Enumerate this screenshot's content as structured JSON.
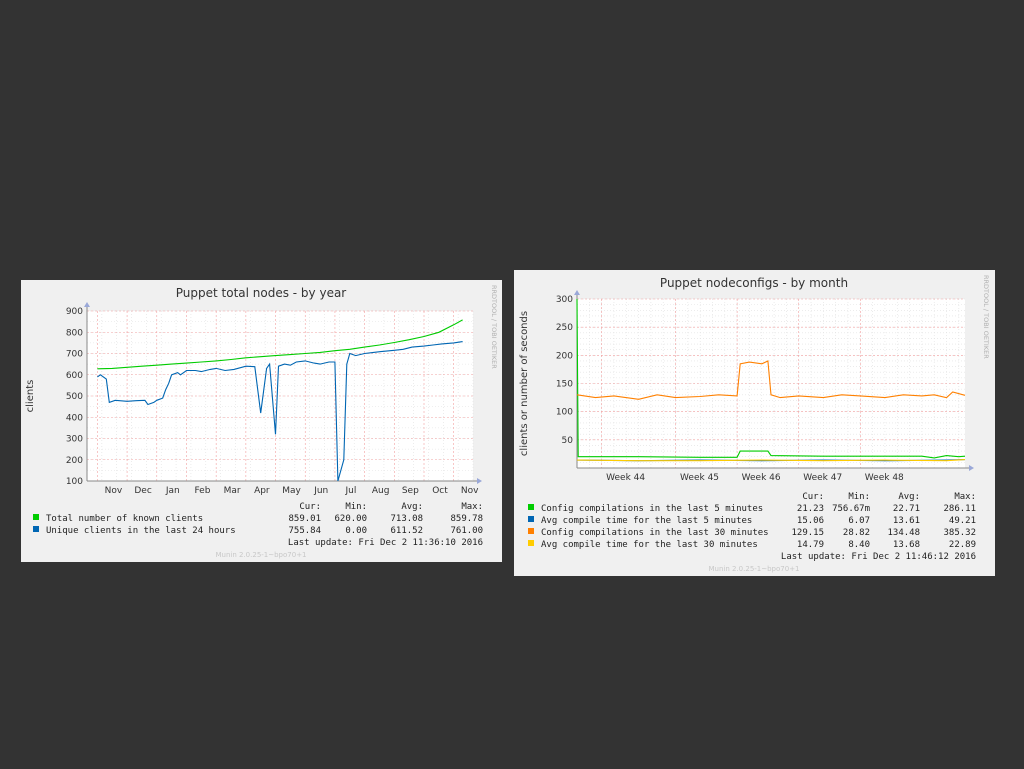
{
  "colors": {
    "background": "#333333",
    "panel": "#f0f0f0",
    "plot_bg": "#ffffff",
    "grid_major": "#f2a0a0",
    "grid_minor": "#e0e0e0",
    "green": "#00cc00",
    "blue": "#0066b3",
    "orange": "#ff8000",
    "yellow": "#ffcc00"
  },
  "side_label": "RRDTOOL / TOBI OETIKER",
  "chart_data": [
    {
      "type": "line",
      "title": "Puppet total nodes - by year",
      "ylabel": "clients",
      "xlabel": "",
      "ylim": [
        100,
        900
      ],
      "yticks": [
        100,
        200,
        300,
        400,
        500,
        600,
        700,
        800,
        900
      ],
      "xticks": [
        "Nov",
        "Dec",
        "Jan",
        "Feb",
        "Mar",
        "Apr",
        "May",
        "Jun",
        "Jul",
        "Aug",
        "Sep",
        "Oct",
        "Nov"
      ],
      "grid": true,
      "legend_position": "bottom",
      "legend_header": [
        "Cur:",
        "Min:",
        "Avg:",
        "Max:"
      ],
      "series": [
        {
          "name": "Total number of known clients",
          "color": "#00cc00",
          "cur": "859.01",
          "min": "620.00",
          "avg": "713.08",
          "max": "859.78",
          "x": [
            0,
            0.5,
            1,
            1.5,
            2,
            2.5,
            3,
            3.5,
            4,
            4.5,
            5,
            5.5,
            6,
            6.5,
            7,
            7.5,
            8,
            8.5,
            9,
            9.5,
            10,
            10.5,
            11,
            11.5,
            12,
            12.3
          ],
          "values": [
            628,
            630,
            635,
            640,
            645,
            650,
            655,
            660,
            665,
            672,
            680,
            685,
            690,
            695,
            700,
            705,
            713,
            720,
            730,
            740,
            752,
            765,
            780,
            800,
            835,
            858
          ]
        },
        {
          "name": "Unique clients in the last 24 hours",
          "color": "#0066b3",
          "cur": "755.84",
          "min": "0.00",
          "avg": "611.52",
          "max": "761.00",
          "x": [
            0,
            0.1,
            0.3,
            0.4,
            0.6,
            1,
            1.3,
            1.6,
            1.7,
            1.9,
            2,
            2.2,
            2.3,
            2.4,
            2.5,
            2.7,
            2.8,
            3,
            3.3,
            3.5,
            3.8,
            4,
            4.3,
            4.6,
            5,
            5.3,
            5.5,
            5.7,
            5.8,
            6,
            6.1,
            6.3,
            6.5,
            6.7,
            7,
            7.3,
            7.5,
            7.8,
            8,
            8.1,
            8.3,
            8.4,
            8.5,
            8.7,
            9,
            9.3,
            9.6,
            10,
            10.3,
            10.6,
            11,
            11.3,
            11.6,
            12,
            12.3
          ],
          "values": [
            590,
            600,
            580,
            470,
            480,
            475,
            478,
            480,
            460,
            470,
            480,
            490,
            530,
            560,
            600,
            610,
            600,
            620,
            620,
            615,
            625,
            630,
            620,
            625,
            640,
            638,
            420,
            630,
            650,
            320,
            640,
            650,
            645,
            660,
            665,
            655,
            650,
            660,
            660,
            0,
            200,
            650,
            700,
            690,
            700,
            705,
            710,
            715,
            720,
            730,
            735,
            740,
            745,
            750,
            756
          ]
        }
      ],
      "last_update": "Last update:  Fri Dec  2 11:36:10 2016",
      "footer": "Munin 2.0.25-1~bpo70+1"
    },
    {
      "type": "line",
      "title": "Puppet nodeconfigs - by month",
      "ylabel": "clients or number of seconds",
      "xlabel": "",
      "ylim": [
        0,
        300
      ],
      "yticks": [
        50,
        100,
        150,
        200,
        250,
        300
      ],
      "xticks": [
        "Week 44",
        "Week 45",
        "Week 46",
        "Week 47",
        "Week 48"
      ],
      "grid": true,
      "legend_position": "bottom",
      "legend_header": [
        "Cur:",
        "Min:",
        "Avg:",
        "Max:"
      ],
      "series": [
        {
          "name": "Config compilations in the last 5 minutes",
          "color": "#00cc00",
          "cur": "21.23",
          "min": "756.67m",
          "avg": "22.71",
          "max": "286.11",
          "x": [
            0,
            0.02,
            0.05,
            1,
            2,
            2.6,
            2.65,
            3.1,
            3.15,
            4,
            5,
            5.6,
            5.8,
            6,
            6.2,
            6.3
          ],
          "values": [
            300,
            20,
            20,
            20,
            19,
            19,
            30,
            30,
            22,
            21,
            21,
            21,
            18,
            22,
            20,
            21
          ]
        },
        {
          "name": "Avg compile time for the last 5 minutes",
          "color": "#0066b3",
          "cur": "15.06",
          "min": "6.07",
          "avg": "13.61",
          "max": "49.21",
          "x": [
            0,
            1,
            2,
            3,
            4,
            5,
            6,
            6.3
          ],
          "values": [
            14,
            13,
            14,
            13,
            14,
            13,
            14,
            15
          ]
        },
        {
          "name": "Config compilations in the last 30 minutes",
          "color": "#ff8000",
          "cur": "129.15",
          "min": "28.82",
          "avg": "134.48",
          "max": "385.32",
          "x": [
            0,
            0.3,
            0.6,
            1,
            1.3,
            1.6,
            2,
            2.3,
            2.6,
            2.65,
            2.8,
            3,
            3.1,
            3.15,
            3.3,
            3.6,
            4,
            4.3,
            4.6,
            5,
            5.3,
            5.6,
            5.8,
            6,
            6.1,
            6.3
          ],
          "values": [
            130,
            125,
            128,
            122,
            130,
            125,
            127,
            130,
            128,
            185,
            188,
            185,
            190,
            130,
            125,
            128,
            125,
            130,
            128,
            125,
            130,
            128,
            130,
            125,
            135,
            129
          ]
        },
        {
          "name": "Avg compile time for the last 30 minutes",
          "color": "#ffcc00",
          "cur": "14.79",
          "min": "8.40",
          "avg": "13.68",
          "max": "22.89",
          "x": [
            0,
            1,
            2,
            3,
            4,
            5,
            6,
            6.3
          ],
          "values": [
            14,
            13,
            13,
            14,
            13,
            14,
            13,
            15
          ]
        }
      ],
      "last_update": "Last update:  Fri Dec  2 11:46:12 2016",
      "footer": "Munin 2.0.25-1~bpo70+1"
    }
  ]
}
